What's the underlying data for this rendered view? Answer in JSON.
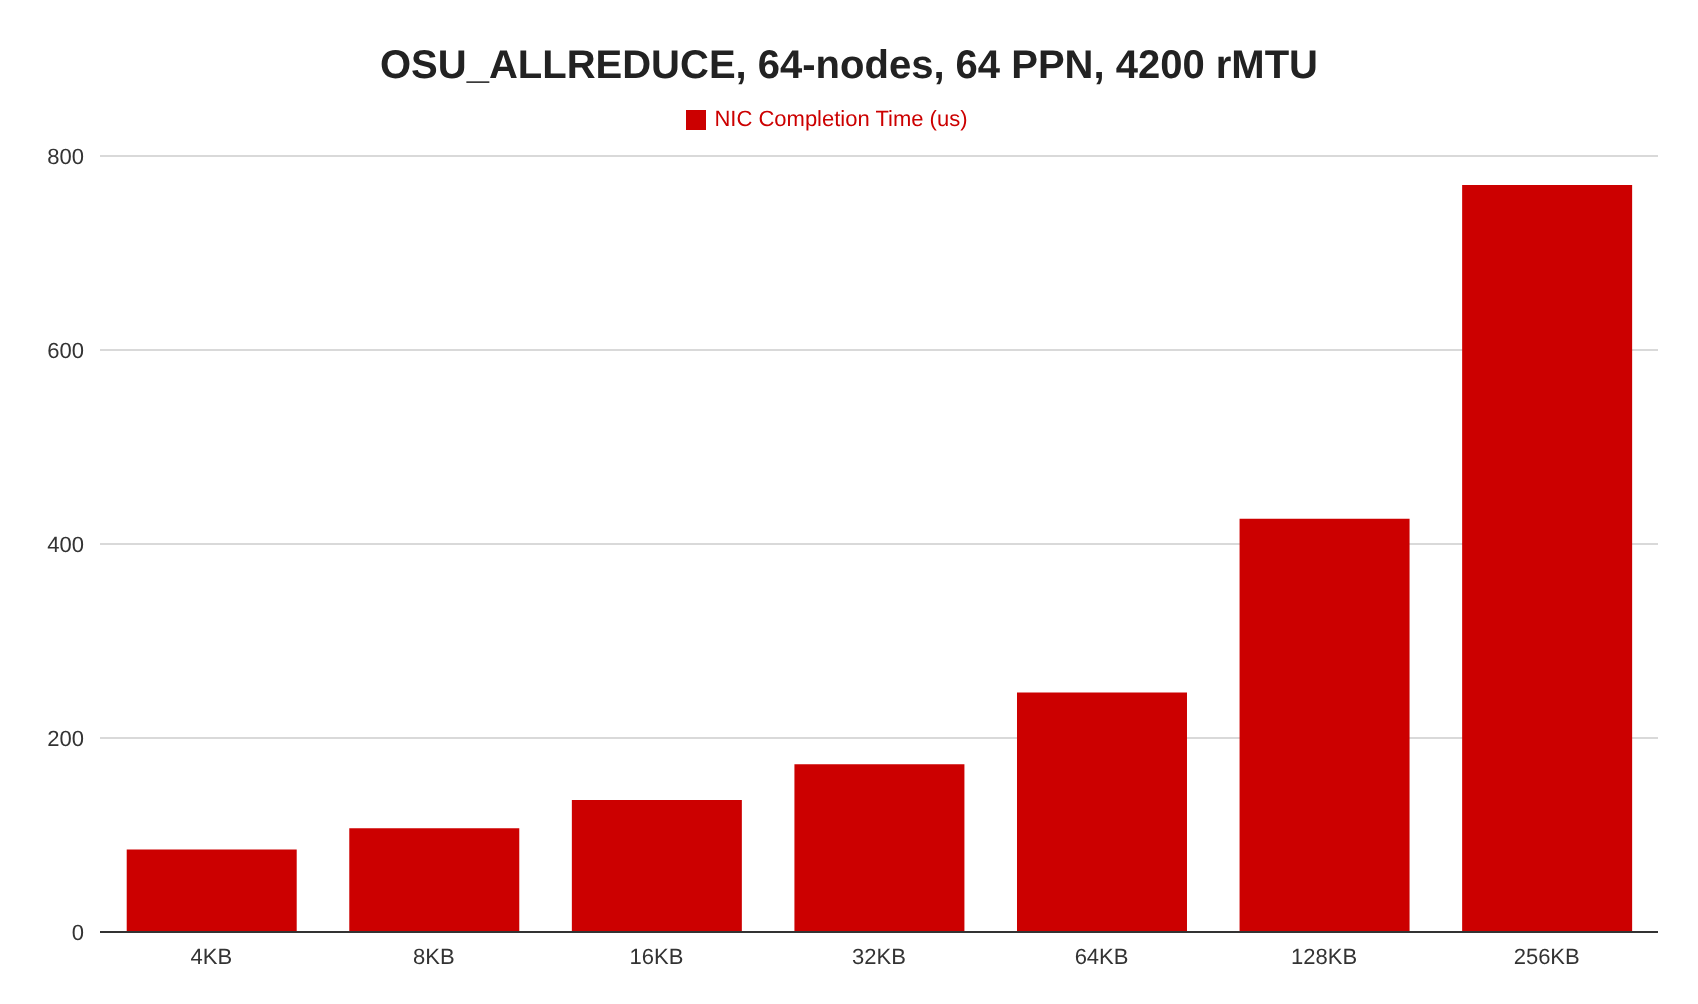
{
  "chart_data": {
    "type": "bar",
    "title": "OSU_ALLREDUCE, 64-nodes, 64 PPN, 4200 rMTU",
    "categories": [
      "4KB",
      "8KB",
      "16KB",
      "32KB",
      "64KB",
      "128KB",
      "256KB"
    ],
    "series": [
      {
        "name": "NIC Completion Time (us)",
        "color": "#cc0000",
        "values": [
          85,
          107,
          136,
          173,
          247,
          426,
          770
        ]
      }
    ],
    "ylim": [
      0,
      800
    ],
    "yticks": [
      0,
      200,
      400,
      600,
      800
    ],
    "grid": "y",
    "legend": "top"
  }
}
